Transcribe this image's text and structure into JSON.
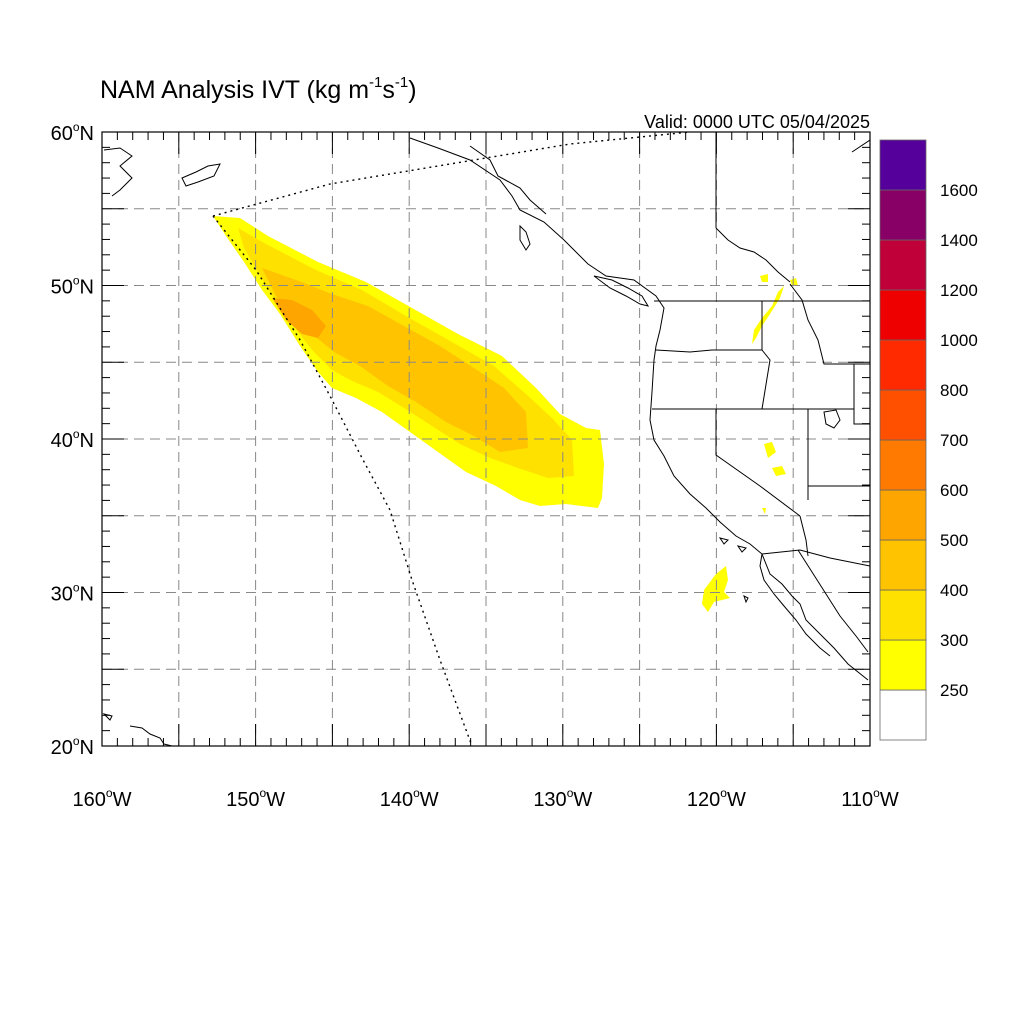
{
  "title": {
    "prefix": "NAM Analysis IVT (kg m",
    "exp1": "-1",
    "mid": "s",
    "exp2": "-1",
    "suffix": ")"
  },
  "valid_label": "Valid: 0000 UTC 05/04/2025",
  "map": {
    "lon_range": [
      -160,
      -110
    ],
    "lat_range": [
      20,
      60
    ],
    "x_ticks": [
      {
        "value": -160,
        "num": "160",
        "deg": "o",
        "hem": "W"
      },
      {
        "value": -150,
        "num": "150",
        "deg": "o",
        "hem": "W"
      },
      {
        "value": -140,
        "num": "140",
        "deg": "o",
        "hem": "W"
      },
      {
        "value": -130,
        "num": "130",
        "deg": "o",
        "hem": "W"
      },
      {
        "value": -120,
        "num": "120",
        "deg": "o",
        "hem": "W"
      },
      {
        "value": -110,
        "num": "110",
        "deg": "o",
        "hem": "W"
      }
    ],
    "y_ticks": [
      {
        "value": 60,
        "num": "60",
        "deg": "o",
        "hem": "N"
      },
      {
        "value": 50,
        "num": "50",
        "deg": "o",
        "hem": "N"
      },
      {
        "value": 40,
        "num": "40",
        "deg": "o",
        "hem": "N"
      },
      {
        "value": 30,
        "num": "30",
        "deg": "o",
        "hem": "N"
      },
      {
        "value": 20,
        "num": "20",
        "deg": "o",
        "hem": "N"
      }
    ],
    "grid_lon_step": 5,
    "grid_lat_step": 5
  },
  "colorbar": {
    "colors": [
      "#ffffff",
      "#ffff00",
      "#ffe100",
      "#ffc300",
      "#ffa500",
      "#ff7a00",
      "#ff5000",
      "#ff2a00",
      "#ee0000",
      "#c00038",
      "#880066",
      "#55009a"
    ],
    "labels": [
      "250",
      "300",
      "400",
      "500",
      "600",
      "700",
      "800",
      "1000",
      "1200",
      "1400",
      "1600"
    ]
  },
  "colors": {
    "ivt_250": "#ffff00",
    "ivt_300": "#ffe100",
    "ivt_400": "#ffc300",
    "ivt_500": "#ffa500"
  }
}
